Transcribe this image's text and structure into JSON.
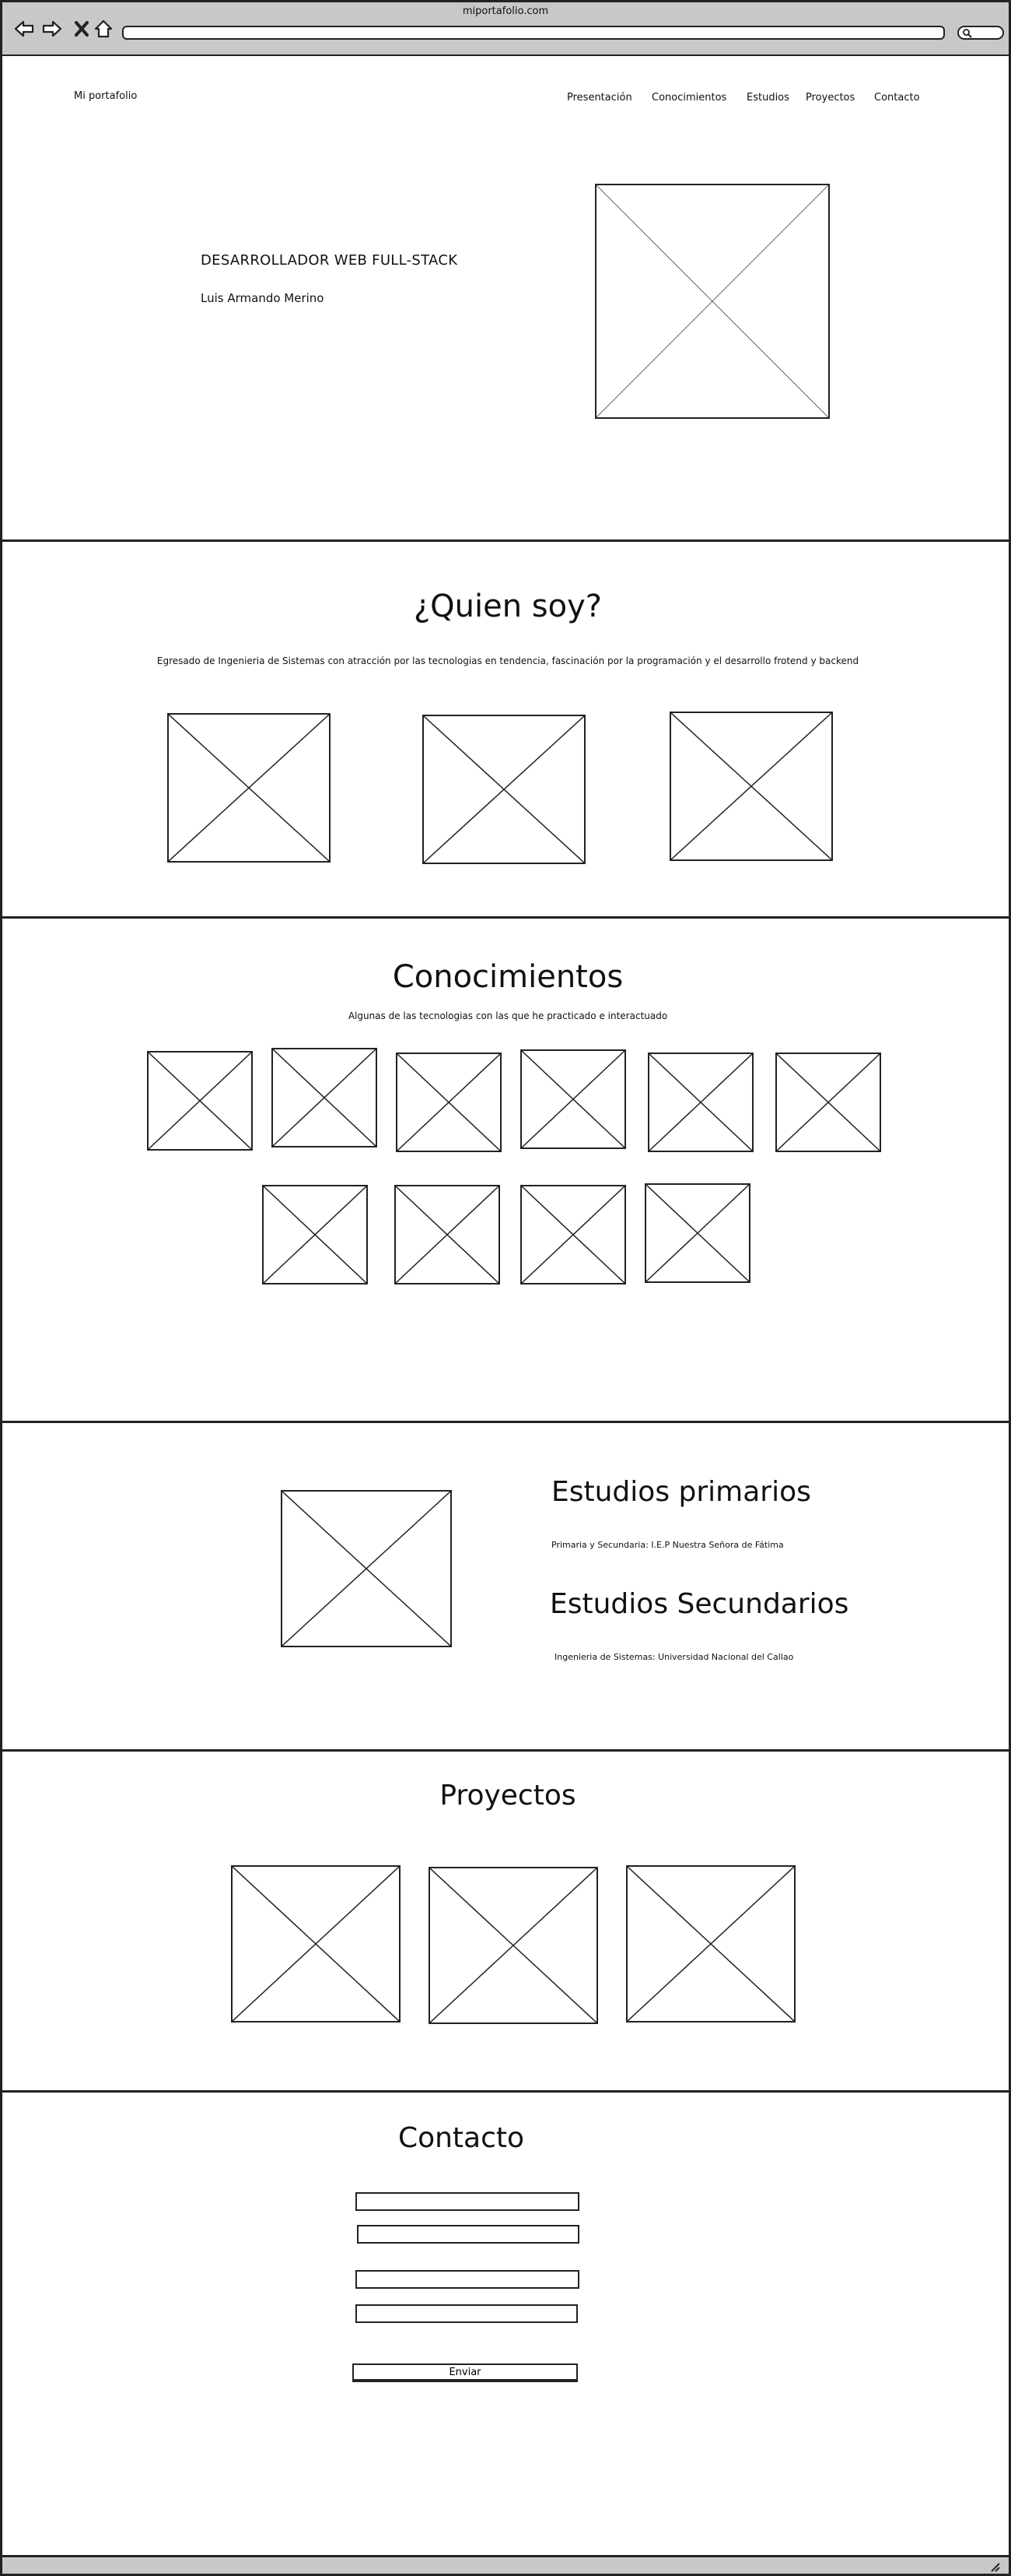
{
  "browser": {
    "title": "miportafolio.com",
    "url": "",
    "search": ""
  },
  "header": {
    "brand": "Mi portafolio",
    "nav": [
      "Presentación",
      "Conocimientos",
      "Estudios",
      "Proyectos",
      "Contacto"
    ]
  },
  "hero": {
    "role": "DESARROLLADOR WEB FULL-STACK",
    "name": "Luis Armando Merino"
  },
  "about": {
    "title": "¿Quien soy?",
    "description": "Egresado de Ingenieria de Sistemas con atracción por las tecnologias en tendencia, fascinación por la programación y el desarrollo frotend y backend"
  },
  "skills": {
    "title": "Conocimientos",
    "subtitle": "Algunas de las tecnologias con las que he practicado e interactuado"
  },
  "studies": {
    "primary_title": "Estudios primarios",
    "primary_text": "Primaria y Secundaria: I.E.P Nuestra Señora de Fátima",
    "secondary_title": "Estudios Secundarios",
    "secondary_text": "Ingenieria de Sistemas: Universidad Nacional del Callao"
  },
  "projects": {
    "title": "Proyectos"
  },
  "contact": {
    "title": "Contacto",
    "submit_label": "Enviar"
  }
}
